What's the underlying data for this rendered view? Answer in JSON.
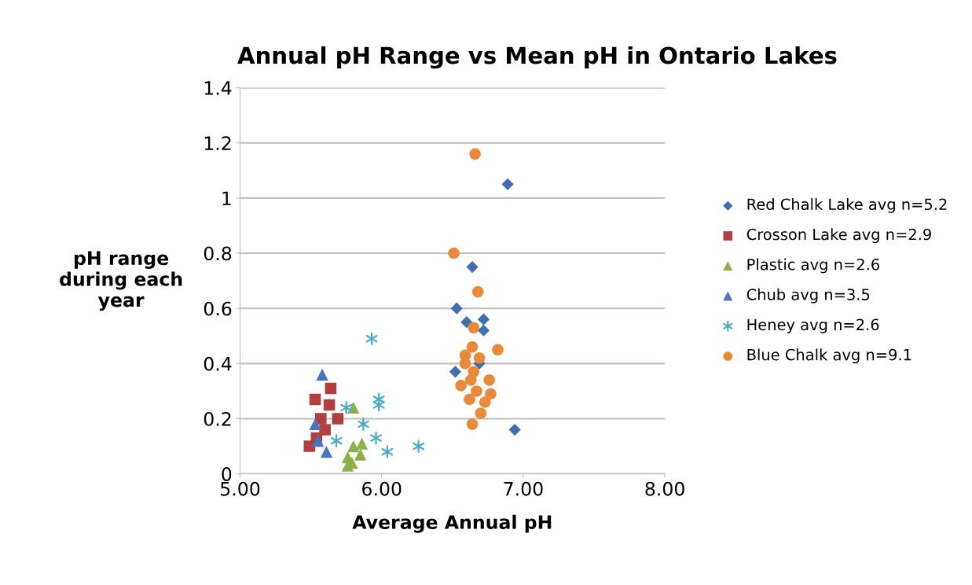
{
  "chart_data": {
    "type": "scatter",
    "title": "Annual pH Range vs Mean pH in Ontario Lakes",
    "xlabel": "Average Annual pH",
    "ylabel": "pH range\nduring each\nyear",
    "xlim": [
      5,
      8
    ],
    "xticks": [
      {
        "value": 5,
        "label": "5.00"
      },
      {
        "value": 6,
        "label": "6.00"
      },
      {
        "value": 7,
        "label": "7.00"
      },
      {
        "value": 8,
        "label": "8.00"
      }
    ],
    "ylim": [
      0,
      1.4
    ],
    "yticks": [
      0,
      0.2,
      0.4,
      0.6,
      0.8,
      1,
      1.2,
      1.4
    ],
    "grid": "y",
    "legend": "right",
    "series": [
      {
        "name": "Red Chalk Lake avg n=5.2",
        "color": "#3f6fb0",
        "marker": "diamond",
        "x": [
          6.89,
          6.64,
          6.53,
          6.6,
          6.72,
          6.72,
          6.52,
          6.69,
          6.94
        ],
        "values": [
          1.05,
          0.75,
          0.6,
          0.55,
          0.56,
          0.52,
          0.37,
          0.4,
          0.16
        ]
      },
      {
        "name": "Crosson Lake avg n=2.9",
        "color": "#b04040",
        "marker": "square",
        "x": [
          5.64,
          5.53,
          5.63,
          5.57,
          5.69,
          5.49,
          5.54,
          5.6
        ],
        "values": [
          0.31,
          0.27,
          0.25,
          0.2,
          0.2,
          0.1,
          0.13,
          0.16
        ]
      },
      {
        "name": "Plastic avg n=2.6",
        "color": "#8db04a",
        "marker": "triangle",
        "x": [
          5.8,
          5.8,
          5.86,
          5.76,
          5.76,
          5.85,
          5.79
        ],
        "values": [
          0.24,
          0.1,
          0.11,
          0.06,
          0.03,
          0.07,
          0.04
        ]
      },
      {
        "name": "Chub avg n=3.5",
        "color": "#4a74c4",
        "marker": "triangle",
        "x": [
          5.58,
          5.53,
          5.55,
          5.61
        ],
        "values": [
          0.36,
          0.18,
          0.12,
          0.08
        ]
      },
      {
        "name": "Heney avg n=2.6",
        "color": "#4bacc6",
        "marker": "cross",
        "x": [
          5.93,
          5.98,
          5.98,
          5.75,
          5.87,
          5.68,
          5.96,
          6.04,
          6.26
        ],
        "values": [
          0.49,
          0.27,
          0.25,
          0.24,
          0.18,
          0.12,
          0.13,
          0.08,
          0.1
        ]
      },
      {
        "name": "Blue Chalk avg n=9.1",
        "color": "#e88a3a",
        "marker": "circle",
        "x": [
          6.66,
          6.51,
          6.68,
          6.65,
          6.64,
          6.82,
          6.59,
          6.69,
          6.59,
          6.56,
          6.63,
          6.76,
          6.77,
          6.62,
          6.73,
          6.7,
          6.64,
          6.67,
          6.65
        ],
        "values": [
          1.16,
          0.8,
          0.66,
          0.53,
          0.46,
          0.45,
          0.43,
          0.42,
          0.4,
          0.32,
          0.34,
          0.34,
          0.29,
          0.27,
          0.26,
          0.22,
          0.18,
          0.3,
          0.37
        ]
      }
    ]
  }
}
